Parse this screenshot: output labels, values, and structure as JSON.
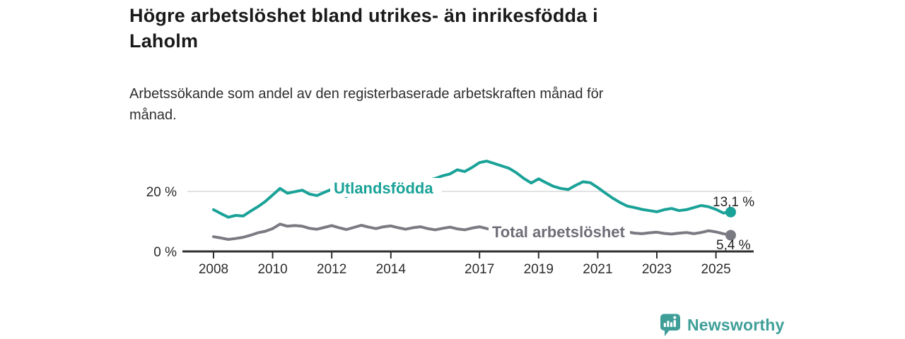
{
  "header": {
    "title_lines": [
      "Högre arbetslöshet bland utrikes- än inrikesfödda i",
      "Laholm"
    ],
    "subtitle_lines": [
      "Arbetssökande som andel av den registerbaserade arbetskraften månad för",
      "månad."
    ]
  },
  "footer": {
    "brand": "Newsworthy",
    "brand_color": "#3f9f98",
    "logo_icon": "speech-bubble-bar-chart-icon"
  },
  "chart_data": {
    "type": "line",
    "title": "Högre arbetslöshet bland utrikes- än inrikesfödda i Laholm",
    "subtitle": "Arbetssökande som andel av den registerbaserade arbetskraften månad för månad.",
    "unit": "%",
    "x_start": 2008.0,
    "x_step": 0.25,
    "x_end": 2025.5,
    "ylim": [
      0,
      32
    ],
    "grid": "single horizontal gridline at 20 %",
    "legend_position": "inline labels on lines",
    "axis_color": "#2f2f2f",
    "gridline_color": "#d8d8d8",
    "yticks": [
      {
        "value": 0,
        "label": "0 %"
      },
      {
        "value": 20,
        "label": "20 %"
      }
    ],
    "xticks": [
      {
        "value": 2008,
        "label": "2008"
      },
      {
        "value": 2010,
        "label": "2010"
      },
      {
        "value": 2012,
        "label": "2012"
      },
      {
        "value": 2014,
        "label": "2014"
      },
      {
        "value": 2017,
        "label": "2017"
      },
      {
        "value": 2019,
        "label": "2019"
      },
      {
        "value": 2021,
        "label": "2021"
      },
      {
        "value": 2023,
        "label": "2023"
      },
      {
        "value": 2025,
        "label": "2025"
      }
    ],
    "series": [
      {
        "name": "Utlandsfödda",
        "color": "#1aa298",
        "label_color": "#1aa298",
        "end_label": "13,1 %",
        "end_value": 13.1,
        "values": [
          13.9,
          12.6,
          11.4,
          12.0,
          11.8,
          13.4,
          14.9,
          16.6,
          18.8,
          21.0,
          19.4,
          19.9,
          20.4,
          19.1,
          18.6,
          19.7,
          20.7,
          19.2,
          18.3,
          20.0,
          21.0,
          19.8,
          18.8,
          20.3,
          20.6,
          19.5,
          19.8,
          21.0,
          22.4,
          23.6,
          24.3,
          25.2,
          25.8,
          27.2,
          26.6,
          28.0,
          29.6,
          30.1,
          29.3,
          28.5,
          27.7,
          26.2,
          24.3,
          22.8,
          24.2,
          22.9,
          21.7,
          21.0,
          20.6,
          22.0,
          23.2,
          22.9,
          21.3,
          19.5,
          17.8,
          16.3,
          15.1,
          14.6,
          14.0,
          13.6,
          13.2,
          13.9,
          14.3,
          13.6,
          13.9,
          14.6,
          15.3,
          14.9,
          14.0,
          12.8,
          13.1
        ]
      },
      {
        "name": "Total arbetslöshet",
        "color": "#7a7a82",
        "label_color": "#6e6e78",
        "end_label": "5,4 %",
        "end_value": 5.4,
        "values": [
          4.9,
          4.5,
          4.0,
          4.3,
          4.7,
          5.4,
          6.2,
          6.7,
          7.6,
          9.1,
          8.4,
          8.6,
          8.4,
          7.7,
          7.4,
          8.0,
          8.6,
          7.9,
          7.3,
          8.0,
          8.7,
          8.1,
          7.6,
          8.2,
          8.5,
          7.9,
          7.4,
          7.9,
          8.2,
          7.6,
          7.2,
          7.7,
          8.1,
          7.5,
          7.2,
          7.8,
          8.2,
          7.6,
          7.1,
          7.4,
          7.6,
          7.1,
          6.7,
          7.0,
          7.2,
          6.8,
          6.5,
          6.9,
          7.1,
          7.9,
          8.3,
          8.0,
          7.8,
          7.3,
          6.9,
          6.7,
          6.5,
          6.1,
          5.9,
          6.2,
          6.4,
          6.0,
          5.8,
          6.1,
          6.3,
          5.9,
          6.3,
          6.9,
          6.5,
          5.9,
          5.4
        ]
      }
    ]
  }
}
